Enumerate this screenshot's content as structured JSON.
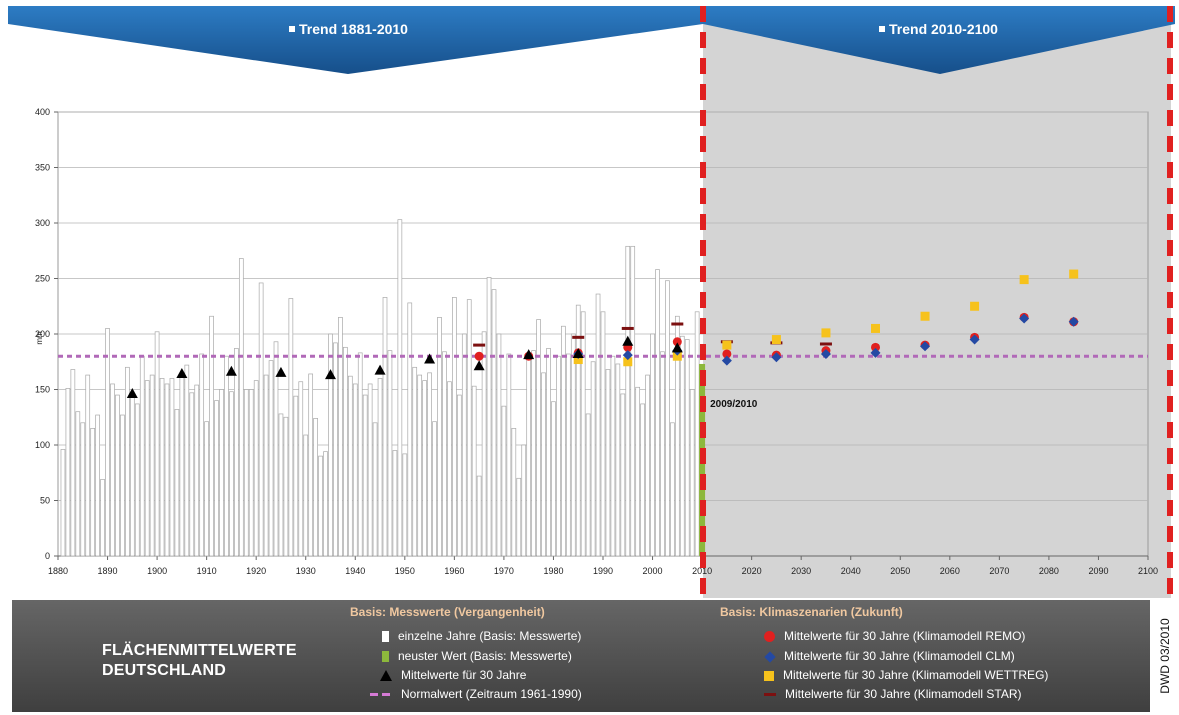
{
  "banners": {
    "left": "Trend 1881-2010",
    "right": "Trend 2010-2100"
  },
  "chart_data": {
    "type": "bar",
    "ylabel": "mm",
    "ylim": [
      0,
      400
    ],
    "xlim": [
      1880,
      2100
    ],
    "yticks": [
      0,
      50,
      100,
      150,
      200,
      250,
      300,
      350,
      400
    ],
    "xticks": [
      1880,
      1890,
      1900,
      1910,
      1920,
      1930,
      1940,
      1950,
      1960,
      1970,
      1980,
      1990,
      2000,
      2010,
      2020,
      2030,
      2040,
      2050,
      2060,
      2070,
      2080,
      2090,
      2100
    ],
    "grid": true,
    "annual_bars": {
      "name": "einzelne Jahre (Basis: Messwerte)",
      "x": [
        1881,
        1882,
        1883,
        1884,
        1885,
        1886,
        1887,
        1888,
        1889,
        1890,
        1891,
        1892,
        1893,
        1894,
        1895,
        1896,
        1897,
        1898,
        1899,
        1900,
        1901,
        1902,
        1903,
        1904,
        1905,
        1906,
        1907,
        1908,
        1909,
        1910,
        1911,
        1912,
        1913,
        1914,
        1915,
        1916,
        1917,
        1918,
        1919,
        1920,
        1921,
        1922,
        1923,
        1924,
        1925,
        1926,
        1927,
        1928,
        1929,
        1930,
        1931,
        1932,
        1933,
        1934,
        1935,
        1936,
        1937,
        1938,
        1939,
        1940,
        1941,
        1942,
        1943,
        1944,
        1945,
        1946,
        1947,
        1948,
        1949,
        1950,
        1951,
        1952,
        1953,
        1954,
        1955,
        1956,
        1957,
        1958,
        1959,
        1960,
        1961,
        1962,
        1963,
        1964,
        1965,
        1966,
        1967,
        1968,
        1969,
        1970,
        1971,
        1972,
        1973,
        1974,
        1975,
        1976,
        1977,
        1978,
        1979,
        1980,
        1981,
        1982,
        1983,
        1984,
        1985,
        1986,
        1987,
        1988,
        1989,
        1990,
        1991,
        1992,
        1993,
        1994,
        1995,
        1996,
        1997,
        1998,
        1999,
        2000,
        2001,
        2002,
        2003,
        2004,
        2005,
        2006,
        2007,
        2008,
        2009
      ],
      "values": [
        96,
        151,
        168,
        130,
        120,
        163,
        115,
        127,
        69,
        205,
        155,
        145,
        127,
        170,
        145,
        137,
        180,
        158,
        163,
        202,
        160,
        155,
        160,
        132,
        162,
        172,
        147,
        154,
        182,
        121,
        216,
        140,
        150,
        180,
        148,
        187,
        268,
        150,
        150,
        158,
        246,
        163,
        176,
        193,
        128,
        125,
        232,
        144,
        157,
        109,
        164,
        124,
        90,
        94,
        200,
        192,
        215,
        188,
        162,
        155,
        183,
        145,
        155,
        120,
        160,
        233,
        185,
        95,
        303,
        92,
        228,
        170,
        163,
        158,
        165,
        121,
        215,
        184,
        157,
        233,
        145,
        200,
        231,
        153,
        72,
        202,
        251,
        240,
        200,
        135,
        182,
        115,
        70,
        100,
        183,
        185,
        213,
        165,
        187,
        139,
        180,
        207,
        182,
        200,
        226,
        220,
        128,
        175,
        236,
        220,
        168,
        180,
        173,
        146,
        279,
        279,
        152,
        137,
        163,
        200,
        258,
        184,
        248,
        120,
        216,
        198,
        195,
        150,
        220
      ]
    },
    "latest_value": {
      "name": "neuster Wert (Basis: Messwerte)",
      "x": 2010,
      "y": 173,
      "label": "2009/2010"
    },
    "normal_value": {
      "name": "Normalwert (Zeitraum 1961-1990)",
      "y": 180
    },
    "series": [
      {
        "name": "Mittelwerte für 30 Jahre",
        "x": [
          1895,
          1905,
          1915,
          1925,
          1935,
          1945,
          1955,
          1965,
          1975,
          1985,
          1995,
          2005
        ],
        "values": [
          146,
          164,
          166,
          165,
          163,
          167,
          177,
          171,
          181,
          182,
          193,
          187
        ]
      },
      {
        "name": "Mittelwerte für 30 Jahre (Klimamodell REMO)",
        "x": [
          1965,
          1975,
          1985,
          1995,
          2005,
          2015,
          2025,
          2035,
          2045,
          2055,
          2065,
          2075,
          2085
        ],
        "values": [
          180,
          180,
          183,
          188,
          193,
          182,
          181,
          185,
          188,
          190,
          197,
          215,
          211
        ]
      },
      {
        "name": "Mittelwerte für 30 Jahre (Klimamodell CLM)",
        "x": [
          1985,
          1995,
          2005,
          2015,
          2025,
          2035,
          2045,
          2055,
          2065,
          2075,
          2085
        ],
        "values": [
          182,
          181,
          185,
          176,
          179,
          182,
          183,
          189,
          195,
          214,
          211
        ]
      },
      {
        "name": "Mittelwerte für 30 Jahre (Klimamodell WETTREG)",
        "x": [
          1985,
          1995,
          2005,
          2015,
          2025,
          2035,
          2045,
          2055,
          2065,
          2075,
          2085
        ],
        "values": [
          177,
          175,
          180,
          190,
          195,
          201,
          205,
          216,
          225,
          249,
          254
        ]
      },
      {
        "name": "Mittelwerte für 30 Jahre (Klimamodell STAR)",
        "x": [
          1965,
          1985,
          1995,
          2005,
          2015,
          2025,
          2035
        ],
        "values": [
          190,
          197,
          205,
          209,
          193,
          192,
          191
        ]
      }
    ]
  },
  "legend": {
    "title_line1": "FLÄCHENMITTELWERTE",
    "title_line2": "DEUTSCHLAND",
    "past_heading": "Basis: Messwerte (Vergangenheit)",
    "future_heading": "Basis: Klimaszenarien (Zukunft)",
    "past_items": [
      "einzelne Jahre (Basis: Messwerte)",
      "neuster Wert (Basis: Messwerte)",
      "Mittelwerte für 30 Jahre",
      "Normalwert (Zeitraum 1961-1990)"
    ],
    "future_items": [
      "Mittelwerte für 30 Jahre (Klimamodell REMO)",
      "Mittelwerte für 30 Jahre (Klimamodell CLM)",
      "Mittelwerte für 30 Jahre (Klimamodell WETTREG)",
      "Mittelwerte für 30 Jahre (Klimamodell STAR)"
    ],
    "source": "DWD 03/2010"
  },
  "colors": {
    "banner": "#1b64a8",
    "future_bg": "#d4d4d4",
    "bar_fill": "#ffffff",
    "bar_stroke": "#a9a9a9",
    "latest": "#8db83c",
    "triangle": "#000000",
    "remo": "#e0201f",
    "clm": "#2449a3",
    "wettreg": "#f6c21c",
    "star": "#7c1010",
    "normal": "#b169b8",
    "divider": "#e02020",
    "legend_heading": "#f0c8a0"
  }
}
